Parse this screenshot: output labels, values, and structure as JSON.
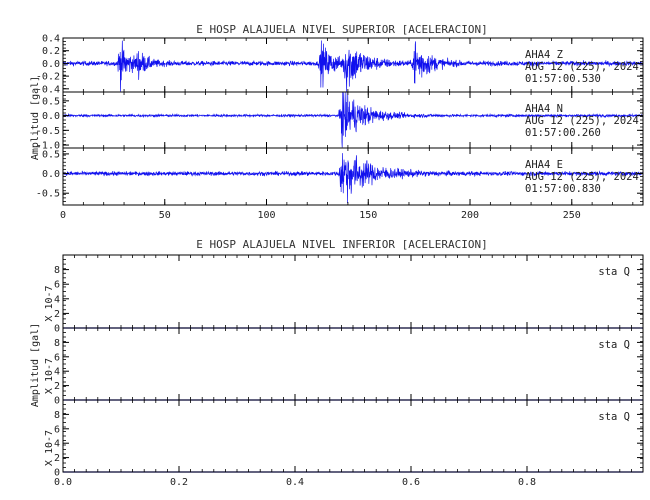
{
  "chart_data": [
    {
      "type": "line",
      "title": "E HOSP ALAJUELA NIVEL SUPERIOR [ACELERACION]",
      "ylabel": "Amplitud [gal]",
      "xlim": [
        0,
        285
      ],
      "x_ticks": [
        "0",
        "50",
        "100",
        "150",
        "200",
        "250"
      ],
      "grid": false,
      "series_color": "#1010ee",
      "panels": [
        {
          "name": "AHA4 Z",
          "annotation": [
            "AHA4 Z",
            "AUG 12 (225), 2024",
            "01:57:00.530"
          ],
          "ylim": [
            -0.45,
            0.4
          ],
          "y_ticks": [
            "0.4",
            "0.2",
            "0.0",
            "-0.2",
            "-0.4"
          ],
          "noise_amp": 0.035,
          "bursts": [
            {
              "x": 28,
              "amp": 0.32,
              "width": 5
            },
            {
              "x": 37,
              "amp": 0.16,
              "width": 4
            },
            {
              "x": 127,
              "amp": 0.3,
              "width": 6
            },
            {
              "x": 139,
              "amp": 0.4,
              "width": 8
            },
            {
              "x": 173,
              "amp": 0.38,
              "width": 6
            }
          ]
        },
        {
          "name": "AHA4 N",
          "annotation": [
            "AHA4 N",
            "AUG 12 (225), 2024",
            "01:57:00.260"
          ],
          "ylim": [
            -1.1,
            0.8
          ],
          "y_ticks": [
            "0.5",
            "0.0",
            "-0.5",
            "-1.0"
          ],
          "noise_amp": 0.04,
          "bursts": [
            {
              "x": 137,
              "amp": 0.95,
              "width": 10
            }
          ]
        },
        {
          "name": "AHA4 E",
          "annotation": [
            "AHA4 E",
            "AUG 12 (225), 2024",
            "01:57:00.830"
          ],
          "ylim": [
            -0.8,
            0.65
          ],
          "y_ticks": [
            "0.5",
            "0.0",
            "-0.5"
          ],
          "noise_amp": 0.05,
          "bursts": [
            {
              "x": 137,
              "amp": 0.7,
              "width": 12
            }
          ]
        }
      ]
    },
    {
      "type": "line",
      "title": "E HOSP ALAJUELA NIVEL INFERIOR [ACELERACION]",
      "ylabel": "Amplitud [gal]",
      "xlim": [
        0,
        1.0
      ],
      "x_ticks": [
        "0.0",
        "0.2",
        "0.4",
        "0.6",
        "0.8"
      ],
      "grid": false,
      "series_color": "#1010ee",
      "panels": [
        {
          "name": "sta Q",
          "annotation": [
            "sta Q"
          ],
          "scale_label": "X 10-7",
          "ylim": [
            0,
            10
          ],
          "y_ticks": [
            "8",
            "6",
            "4",
            "2",
            "0"
          ],
          "values": 0
        },
        {
          "name": "sta Q",
          "annotation": [
            "sta Q"
          ],
          "scale_label": "X 10-7",
          "ylim": [
            0,
            10
          ],
          "y_ticks": [
            "8",
            "6",
            "4",
            "2",
            "0"
          ],
          "values": 0
        },
        {
          "name": "sta Q",
          "annotation": [
            "sta Q"
          ],
          "scale_label": "X 10-7",
          "ylim": [
            0,
            10
          ],
          "y_ticks": [
            "8",
            "6",
            "4",
            "2",
            "0"
          ],
          "values": 0
        }
      ]
    }
  ]
}
